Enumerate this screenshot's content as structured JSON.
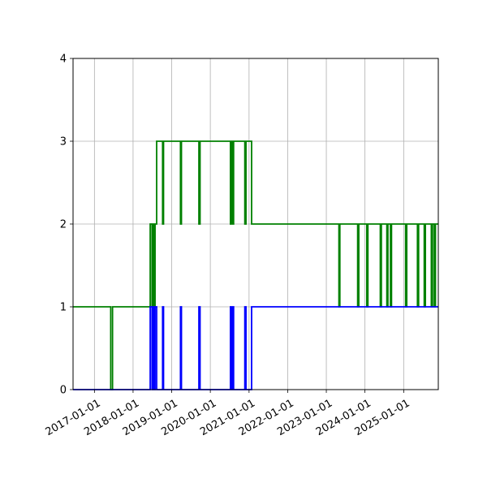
{
  "chart_data": {
    "type": "line",
    "title": "",
    "xlabel": "",
    "ylabel": "",
    "grid": true,
    "legend": "none",
    "x_type": "date",
    "xlim": [
      "2016-06-13",
      "2025-11-24"
    ],
    "ylim": [
      0,
      4
    ],
    "x_ticks": [
      "2017-01-01",
      "2018-01-01",
      "2019-01-01",
      "2020-01-01",
      "2021-01-01",
      "2022-01-01",
      "2023-01-01",
      "2024-01-01",
      "2025-01-01"
    ],
    "y_ticks": [
      "0",
      "1",
      "2",
      "3",
      "4"
    ],
    "series": [
      {
        "color": "#008000",
        "step": true,
        "points": [
          [
            "2016-06-13",
            1
          ],
          [
            "2017-06-03",
            1
          ],
          [
            "2017-06-04",
            0
          ],
          [
            "2017-06-20",
            0
          ],
          [
            "2017-06-21",
            1
          ],
          [
            "2018-06-11",
            1
          ],
          [
            "2018-06-12",
            2
          ],
          [
            "2018-06-28",
            2
          ],
          [
            "2018-06-29",
            1
          ],
          [
            "2018-07-08",
            1
          ],
          [
            "2018-07-09",
            2
          ],
          [
            "2018-07-17",
            2
          ],
          [
            "2018-07-18",
            1
          ],
          [
            "2018-07-27",
            1
          ],
          [
            "2018-07-28",
            2
          ],
          [
            "2018-08-11",
            2
          ],
          [
            "2018-08-12",
            3
          ],
          [
            "2018-10-06",
            3
          ],
          [
            "2018-10-07",
            2
          ],
          [
            "2018-10-15",
            2
          ],
          [
            "2018-10-16",
            3
          ],
          [
            "2019-03-24",
            3
          ],
          [
            "2019-03-25",
            2
          ],
          [
            "2019-04-02",
            2
          ],
          [
            "2019-04-03",
            3
          ],
          [
            "2019-09-14",
            3
          ],
          [
            "2019-09-15",
            2
          ],
          [
            "2019-09-25",
            2
          ],
          [
            "2019-09-26",
            3
          ],
          [
            "2020-07-08",
            3
          ],
          [
            "2020-07-09",
            2
          ],
          [
            "2020-07-19",
            2
          ],
          [
            "2020-07-20",
            3
          ],
          [
            "2020-07-28",
            3
          ],
          [
            "2020-07-29",
            2
          ],
          [
            "2020-08-07",
            2
          ],
          [
            "2020-08-08",
            3
          ],
          [
            "2020-11-21",
            3
          ],
          [
            "2020-11-22",
            2
          ],
          [
            "2020-12-02",
            2
          ],
          [
            "2020-12-03",
            3
          ],
          [
            "2021-01-24",
            3
          ],
          [
            "2021-01-25",
            2
          ],
          [
            "2023-04-29",
            2
          ],
          [
            "2023-04-30",
            1
          ],
          [
            "2023-05-08",
            1
          ],
          [
            "2023-05-09",
            2
          ],
          [
            "2023-10-23",
            2
          ],
          [
            "2023-10-24",
            1
          ],
          [
            "2023-11-03",
            1
          ],
          [
            "2023-11-04",
            2
          ],
          [
            "2024-01-17",
            2
          ],
          [
            "2024-01-18",
            1
          ],
          [
            "2024-01-28",
            1
          ],
          [
            "2024-01-29",
            2
          ],
          [
            "2024-05-24",
            2
          ],
          [
            "2024-05-25",
            1
          ],
          [
            "2024-06-03",
            1
          ],
          [
            "2024-06-04",
            2
          ],
          [
            "2024-07-25",
            2
          ],
          [
            "2024-07-26",
            1
          ],
          [
            "2024-08-04",
            1
          ],
          [
            "2024-08-05",
            2
          ],
          [
            "2024-08-28",
            2
          ],
          [
            "2024-08-29",
            1
          ],
          [
            "2024-09-07",
            1
          ],
          [
            "2024-09-08",
            2
          ],
          [
            "2025-01-18",
            2
          ],
          [
            "2025-01-19",
            1
          ],
          [
            "2025-01-29",
            1
          ],
          [
            "2025-01-30",
            2
          ],
          [
            "2025-05-10",
            2
          ],
          [
            "2025-05-11",
            1
          ],
          [
            "2025-05-21",
            1
          ],
          [
            "2025-05-22",
            2
          ],
          [
            "2025-07-13",
            2
          ],
          [
            "2025-07-14",
            1
          ],
          [
            "2025-07-24",
            1
          ],
          [
            "2025-07-25",
            2
          ],
          [
            "2025-09-18",
            2
          ],
          [
            "2025-09-19",
            1
          ],
          [
            "2025-09-29",
            1
          ],
          [
            "2025-09-30",
            2
          ],
          [
            "2025-10-16",
            2
          ],
          [
            "2025-10-17",
            1
          ],
          [
            "2025-10-27",
            1
          ],
          [
            "2025-10-28",
            2
          ],
          [
            "2025-11-24",
            2
          ]
        ]
      },
      {
        "color": "#0000ff",
        "step": true,
        "points": [
          [
            "2016-06-13",
            0
          ],
          [
            "2018-06-11",
            0
          ],
          [
            "2018-06-12",
            1
          ],
          [
            "2018-06-28",
            1
          ],
          [
            "2018-06-29",
            0
          ],
          [
            "2018-07-08",
            0
          ],
          [
            "2018-07-09",
            1
          ],
          [
            "2018-07-17",
            1
          ],
          [
            "2018-07-18",
            0
          ],
          [
            "2018-07-27",
            0
          ],
          [
            "2018-07-28",
            1
          ],
          [
            "2018-08-11",
            1
          ],
          [
            "2018-08-12",
            0
          ],
          [
            "2018-10-06",
            0
          ],
          [
            "2018-10-07",
            1
          ],
          [
            "2018-10-15",
            1
          ],
          [
            "2018-10-16",
            0
          ],
          [
            "2019-03-24",
            0
          ],
          [
            "2019-03-25",
            1
          ],
          [
            "2019-04-02",
            1
          ],
          [
            "2019-04-03",
            0
          ],
          [
            "2019-09-14",
            0
          ],
          [
            "2019-09-15",
            1
          ],
          [
            "2019-09-25",
            1
          ],
          [
            "2019-09-26",
            0
          ],
          [
            "2020-07-08",
            0
          ],
          [
            "2020-07-09",
            1
          ],
          [
            "2020-07-19",
            1
          ],
          [
            "2020-07-20",
            0
          ],
          [
            "2020-07-28",
            0
          ],
          [
            "2020-07-29",
            1
          ],
          [
            "2020-08-07",
            1
          ],
          [
            "2020-08-08",
            0
          ],
          [
            "2020-11-21",
            0
          ],
          [
            "2020-11-22",
            1
          ],
          [
            "2020-12-02",
            1
          ],
          [
            "2020-12-03",
            0
          ],
          [
            "2021-01-24",
            0
          ],
          [
            "2021-01-25",
            1
          ],
          [
            "2025-11-24",
            1
          ]
        ]
      }
    ]
  }
}
